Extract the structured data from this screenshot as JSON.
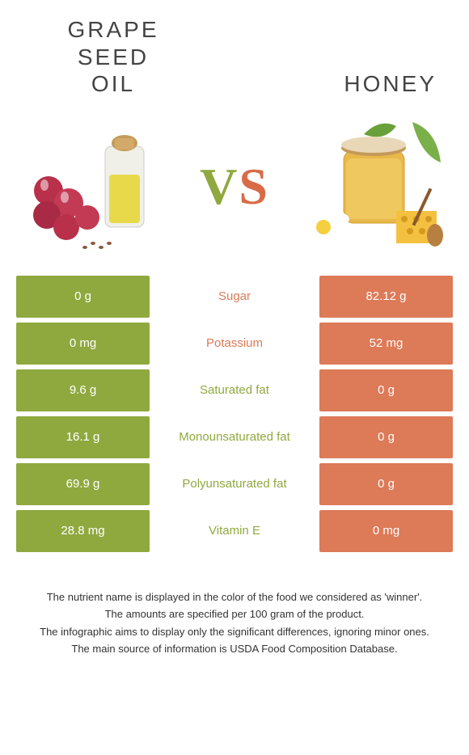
{
  "colors": {
    "green": "#8fa93f",
    "orange": "#dd7a58"
  },
  "header": {
    "left_line1": "GRAPE SEED",
    "left_line2": "OIL",
    "right": "HONEY",
    "vs_v": "V",
    "vs_s": "S"
  },
  "table": {
    "left_color": "#8fa93f",
    "right_color": "#dd7a58",
    "rows": [
      {
        "left": "0 g",
        "label": "Sugar",
        "winner": "right",
        "right": "82.12 g"
      },
      {
        "left": "0 mg",
        "label": "Potassium",
        "winner": "right",
        "right": "52 mg"
      },
      {
        "left": "9.6 g",
        "label": "Saturated fat",
        "winner": "left",
        "right": "0 g"
      },
      {
        "left": "16.1 g",
        "label": "Monounsaturated fat",
        "winner": "left",
        "right": "0 g"
      },
      {
        "left": "69.9 g",
        "label": "Polyunsaturated fat",
        "winner": "left",
        "right": "0 g"
      },
      {
        "left": "28.8 mg",
        "label": "Vitamin E",
        "winner": "left",
        "right": "0 mg"
      }
    ]
  },
  "footnotes": [
    "The nutrient name is displayed in the color of the food we considered as 'winner'.",
    "The amounts are specified per 100 gram of the product.",
    "The infographic aims to display only the significant differences, ignoring minor ones.",
    "The main source of information is USDA Food Composition Database."
  ]
}
